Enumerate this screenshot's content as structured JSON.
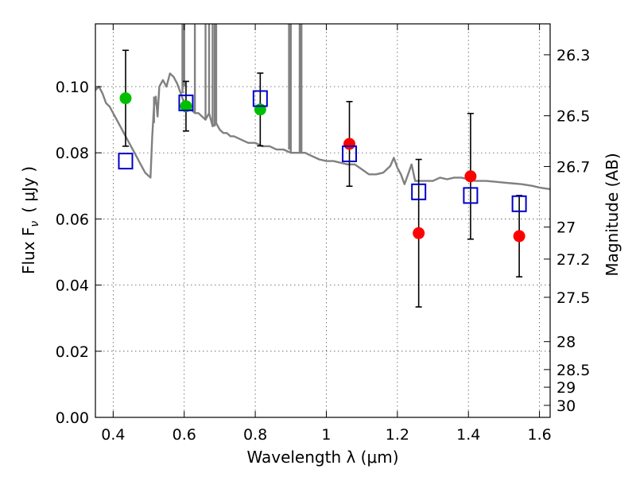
{
  "chart_data": {
    "type": "scatter",
    "xlabel": "Wavelength  λ (μm)",
    "ylabel": "Flux  F",
    "ylabel_sub": "ν",
    "ylabel_unit": "( μJy )",
    "y2label": "Magnitude (AB)",
    "xlim": [
      0.35,
      1.63
    ],
    "ylim": [
      0.0,
      0.119
    ],
    "grid": true,
    "x_ticks": [
      {
        "value": 0.4,
        "label": "0.4"
      },
      {
        "value": 0.6,
        "label": "0.6"
      },
      {
        "value": 0.8,
        "label": "0.8"
      },
      {
        "value": 1.0,
        "label": "1"
      },
      {
        "value": 1.2,
        "label": "1.2"
      },
      {
        "value": 1.4,
        "label": "1.4"
      },
      {
        "value": 1.6,
        "label": "1.6"
      }
    ],
    "y_ticks": [
      {
        "value": 0.0,
        "label": "0.00"
      },
      {
        "value": 0.02,
        "label": "0.02"
      },
      {
        "value": 0.04,
        "label": "0.04"
      },
      {
        "value": 0.06,
        "label": "0.06"
      },
      {
        "value": 0.08,
        "label": "0.08"
      },
      {
        "value": 0.1,
        "label": "0.10"
      }
    ],
    "y2_ticks": [
      {
        "value": 26.3,
        "label": "26.3"
      },
      {
        "value": 26.5,
        "label": "26.5"
      },
      {
        "value": 26.7,
        "label": "26.7"
      },
      {
        "value": 27.0,
        "label": "27"
      },
      {
        "value": 27.2,
        "label": "27.2"
      },
      {
        "value": 27.5,
        "label": "27.5"
      },
      {
        "value": 28.0,
        "label": "28"
      },
      {
        "value": 28.5,
        "label": "28.5"
      },
      {
        "value": 29.0,
        "label": "29"
      },
      {
        "value": 30.0,
        "label": "30"
      }
    ],
    "model_spectrum": {
      "color": "#808080",
      "points": [
        [
          0.35,
          0.099
        ],
        [
          0.36,
          0.1
        ],
        [
          0.37,
          0.098
        ],
        [
          0.38,
          0.095
        ],
        [
          0.39,
          0.094
        ],
        [
          0.4,
          0.092
        ],
        [
          0.41,
          0.09
        ],
        [
          0.42,
          0.088
        ],
        [
          0.43,
          0.086
        ],
        [
          0.44,
          0.084
        ],
        [
          0.45,
          0.082
        ],
        [
          0.46,
          0.08
        ],
        [
          0.47,
          0.078
        ],
        [
          0.48,
          0.076
        ],
        [
          0.49,
          0.074
        ],
        [
          0.5,
          0.073
        ],
        [
          0.505,
          0.0725
        ],
        [
          0.51,
          0.085
        ],
        [
          0.515,
          0.094
        ],
        [
          0.52,
          0.097
        ],
        [
          0.525,
          0.091
        ],
        [
          0.53,
          0.1
        ],
        [
          0.54,
          0.102
        ],
        [
          0.55,
          0.1
        ],
        [
          0.56,
          0.104
        ],
        [
          0.57,
          0.103
        ],
        [
          0.58,
          0.101
        ],
        [
          0.59,
          0.098
        ],
        [
          0.6,
          0.095
        ],
        [
          0.61,
          0.094
        ],
        [
          0.62,
          0.093
        ],
        [
          0.63,
          0.092
        ],
        [
          0.64,
          0.092
        ],
        [
          0.65,
          0.091
        ],
        [
          0.66,
          0.09
        ],
        [
          0.67,
          0.092
        ],
        [
          0.68,
          0.088
        ],
        [
          0.69,
          0.089
        ],
        [
          0.7,
          0.087
        ],
        [
          0.71,
          0.086
        ],
        [
          0.72,
          0.086
        ],
        [
          0.73,
          0.085
        ],
        [
          0.74,
          0.085
        ],
        [
          0.76,
          0.084
        ],
        [
          0.78,
          0.083
        ],
        [
          0.8,
          0.083
        ],
        [
          0.82,
          0.082
        ],
        [
          0.84,
          0.082
        ],
        [
          0.86,
          0.081
        ],
        [
          0.88,
          0.081
        ],
        [
          0.9,
          0.08
        ],
        [
          0.92,
          0.08
        ],
        [
          0.94,
          0.08
        ],
        [
          0.96,
          0.079
        ],
        [
          0.98,
          0.078
        ],
        [
          1.0,
          0.0775
        ],
        [
          1.02,
          0.0775
        ],
        [
          1.04,
          0.077
        ],
        [
          1.06,
          0.0765
        ],
        [
          1.08,
          0.0765
        ],
        [
          1.1,
          0.075
        ],
        [
          1.12,
          0.0735
        ],
        [
          1.14,
          0.0735
        ],
        [
          1.16,
          0.074
        ],
        [
          1.18,
          0.076
        ],
        [
          1.19,
          0.0785
        ],
        [
          1.2,
          0.0755
        ],
        [
          1.21,
          0.0735
        ],
        [
          1.22,
          0.0705
        ],
        [
          1.23,
          0.0735
        ],
        [
          1.24,
          0.0765
        ],
        [
          1.25,
          0.0715
        ],
        [
          1.27,
          0.0715
        ],
        [
          1.3,
          0.0715
        ],
        [
          1.32,
          0.0725
        ],
        [
          1.34,
          0.072
        ],
        [
          1.36,
          0.0725
        ],
        [
          1.38,
          0.0725
        ],
        [
          1.4,
          0.072
        ],
        [
          1.42,
          0.0715
        ],
        [
          1.45,
          0.0715
        ],
        [
          1.48,
          0.0712
        ],
        [
          1.5,
          0.071
        ],
        [
          1.52,
          0.0708
        ],
        [
          1.55,
          0.0705
        ],
        [
          1.58,
          0.07
        ],
        [
          1.6,
          0.0695
        ],
        [
          1.63,
          0.069
        ]
      ],
      "spikes": [
        {
          "x": 0.515,
          "y0": 0.097,
          "y1": 0.089
        },
        {
          "x": 0.595,
          "y0": 0.098,
          "y1": 0.119
        },
        {
          "x": 0.6,
          "y0": 0.1,
          "y1": 0.119
        },
        {
          "x": 0.63,
          "y0": 0.092,
          "y1": 0.119
        },
        {
          "x": 0.66,
          "y0": 0.09,
          "y1": 0.119
        },
        {
          "x": 0.67,
          "y0": 0.092,
          "y1": 0.119
        },
        {
          "x": 0.68,
          "y0": 0.088,
          "y1": 0.119
        },
        {
          "x": 0.686,
          "y0": 0.088,
          "y1": 0.119
        },
        {
          "x": 0.69,
          "y0": 0.089,
          "y1": 0.119
        },
        {
          "x": 0.895,
          "y0": 0.081,
          "y1": 0.119
        },
        {
          "x": 0.9,
          "y0": 0.08,
          "y1": 0.119
        },
        {
          "x": 0.925,
          "y0": 0.08,
          "y1": 0.119
        },
        {
          "x": 0.93,
          "y0": 0.08,
          "y1": 0.119
        }
      ]
    },
    "series": [
      {
        "marker": "circle",
        "color": "#00bf00",
        "points": [
          {
            "x": 0.435,
            "y": 0.0965,
            "err": 0.0145
          },
          {
            "x": 0.605,
            "y": 0.0941,
            "err": 0.0075
          },
          {
            "x": 0.814,
            "y": 0.0931,
            "err": 0.011
          }
        ]
      },
      {
        "marker": "circle",
        "color": "#ff0000",
        "points": [
          {
            "x": 1.065,
            "y": 0.0827,
            "err": 0.0128
          },
          {
            "x": 1.26,
            "y": 0.0557,
            "err": 0.0223
          },
          {
            "x": 1.406,
            "y": 0.0729,
            "err": 0.019
          },
          {
            "x": 1.543,
            "y": 0.0548,
            "err": 0.0123
          }
        ]
      },
      {
        "marker": "square",
        "color": "#0000cc",
        "points": [
          {
            "x": 0.435,
            "y": 0.0775
          },
          {
            "x": 0.605,
            "y": 0.0951
          },
          {
            "x": 0.814,
            "y": 0.0964
          },
          {
            "x": 1.065,
            "y": 0.0797
          },
          {
            "x": 1.26,
            "y": 0.0682
          },
          {
            "x": 1.406,
            "y": 0.0671
          },
          {
            "x": 1.543,
            "y": 0.0646
          }
        ]
      }
    ]
  }
}
